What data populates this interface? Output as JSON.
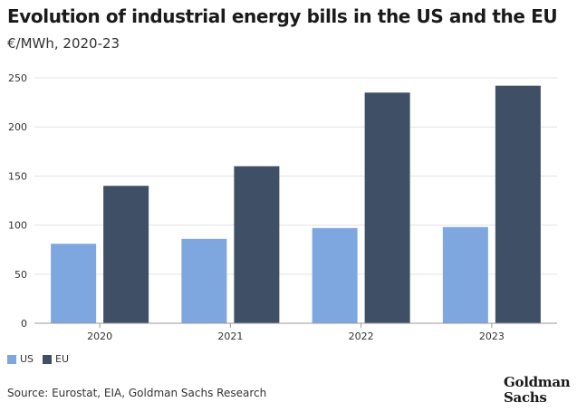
{
  "title": "Evolution of industrial energy bills in the US and the EU",
  "subtitle": "€/MWh, 2020-23",
  "source": "Source: Eurostat, EIA, Goldman Sachs Research",
  "logo": {
    "line1": "Goldman",
    "line2": "Sachs"
  },
  "colors": {
    "US": "#7ea7df",
    "EU": "#3f4f65",
    "grid": "#e3e3e3",
    "axis": "#9a9a9a"
  },
  "chart_data": {
    "type": "bar",
    "title": "Evolution of industrial energy bills in the US and the EU",
    "subtitle": "€/MWh, 2020-23",
    "categories": [
      "2020",
      "2021",
      "2022",
      "2023"
    ],
    "series": [
      {
        "name": "US",
        "values": [
          81,
          86,
          97,
          98
        ]
      },
      {
        "name": "EU",
        "values": [
          140,
          160,
          235,
          242
        ]
      }
    ],
    "ylim": [
      0,
      250
    ],
    "yticks": [
      0,
      50,
      100,
      150,
      200,
      250
    ],
    "grid": true,
    "legend": "bottom-left",
    "xlabel": "",
    "ylabel": ""
  }
}
